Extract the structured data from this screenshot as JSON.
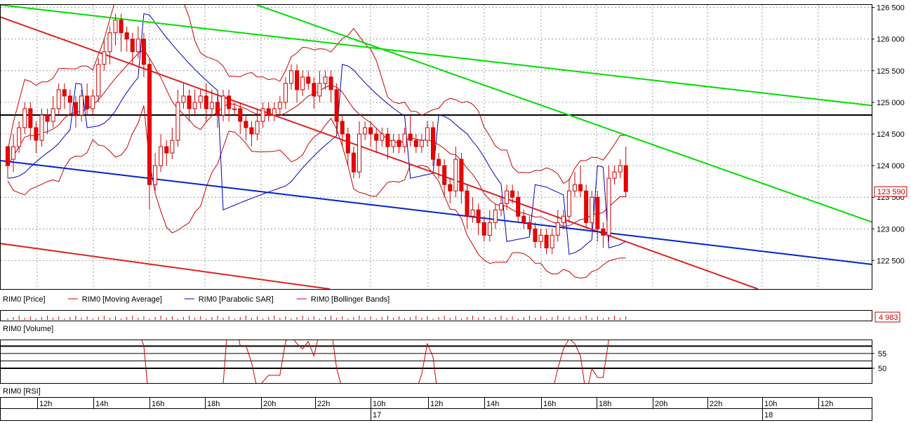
{
  "chart_data": {
    "type": "candlestick",
    "instrument": "RIM0",
    "price_axis": {
      "ticks": [
        "126 500",
        "126 000",
        "125 500",
        "125 000",
        "124 500",
        "124 000",
        "123 500",
        "123 000",
        "122 500"
      ],
      "tick_values": [
        126500,
        126000,
        125500,
        125000,
        124500,
        124000,
        123500,
        123000,
        122500
      ],
      "ylim": [
        122050,
        126540
      ]
    },
    "last_price_label": "123 590",
    "last_price": 123590,
    "volume_label": "4 983",
    "rsi_axis": {
      "ticks": [
        "55",
        "50"
      ],
      "tick_values": [
        55,
        50
      ],
      "ylim": [
        45,
        59.5
      ]
    },
    "legend": [
      {
        "label": "RIM0 [Price]",
        "color": "#cc0000"
      },
      {
        "label": "RIM0 [Moving Average]",
        "color": "#cc0000"
      },
      {
        "label": "RIM0 [Parabolic SAR]",
        "color": "#0000bb"
      },
      {
        "label": "RIM0 [Bollinger Bands]",
        "color": "#cc0000"
      }
    ],
    "panel_titles": {
      "volume": "RIM0 [Volume]",
      "rsi": "RIM0 [RSI]"
    },
    "time_axis": {
      "labels": [
        "12h",
        "14h",
        "16h",
        "18h",
        "20h",
        "22h",
        "10h",
        "12h",
        "14h",
        "16h",
        "18h",
        "20h",
        "22h",
        "10h",
        "12h"
      ],
      "dates": [
        "17",
        "18"
      ]
    },
    "horizontal_level": 124800,
    "trendlines": [
      {
        "color": "#00dd00",
        "from": [
          0,
          126540
        ],
        "to": [
          1242,
          124950
        ]
      },
      {
        "color": "#00dd00",
        "from": [
          366,
          126540
        ],
        "to": [
          1242,
          123110
        ]
      },
      {
        "color": "#dd2222",
        "from": [
          0,
          126350
        ],
        "to": [
          1080,
          122050
        ]
      },
      {
        "color": "#dd2222",
        "from": [
          0,
          122770
        ],
        "to": [
          470,
          122050
        ]
      },
      {
        "color": "#0022cc",
        "from": [
          0,
          124080
        ],
        "to": [
          1242,
          122440
        ]
      }
    ],
    "candles": [
      [
        124300,
        124000,
        123800,
        124300
      ],
      [
        124100,
        124300,
        123900,
        124500
      ],
      [
        124300,
        124600,
        124200,
        124700
      ],
      [
        124600,
        124900,
        124500,
        125000
      ],
      [
        124900,
        124600,
        124400,
        125000
      ],
      [
        124600,
        124400,
        124200,
        124700
      ],
      [
        124400,
        124800,
        124300,
        124900
      ],
      [
        124800,
        124700,
        124500,
        124900
      ],
      [
        124700,
        124900,
        124600,
        125100
      ],
      [
        124900,
        125200,
        124800,
        125300
      ],
      [
        125200,
        125100,
        124900,
        125300
      ],
      [
        125100,
        125000,
        124800,
        125200
      ],
      [
        125000,
        124800,
        124600,
        125100
      ],
      [
        124800,
        125100,
        124700,
        125200
      ],
      [
        125100,
        124900,
        124800,
        125300
      ],
      [
        124900,
        125100,
        124800,
        125200
      ],
      [
        125100,
        125600,
        125000,
        125700
      ],
      [
        125600,
        125800,
        125500,
        126000
      ],
      [
        125800,
        126100,
        125600,
        126200
      ],
      [
        126100,
        126300,
        125900,
        126400
      ],
      [
        126300,
        126100,
        125800,
        126400
      ],
      [
        126100,
        126000,
        125800,
        126200
      ],
      [
        126000,
        125800,
        125600,
        126100
      ],
      [
        125800,
        126000,
        125700,
        126200
      ],
      [
        126000,
        125600,
        125400,
        126100
      ],
      [
        125600,
        123700,
        123300,
        125700
      ],
      [
        123700,
        124000,
        123600,
        124200
      ],
      [
        124000,
        124300,
        123900,
        124500
      ],
      [
        124300,
        124200,
        124000,
        124400
      ],
      [
        124200,
        124400,
        124100,
        124600
      ],
      [
        124400,
        125000,
        124300,
        125200
      ],
      [
        125000,
        125100,
        124900,
        125300
      ],
      [
        125100,
        124900,
        124700,
        125200
      ],
      [
        124900,
        125000,
        124800,
        125200
      ],
      [
        125000,
        125100,
        124900,
        125200
      ],
      [
        125100,
        124900,
        124700,
        125300
      ],
      [
        124900,
        125000,
        124800,
        125200
      ],
      [
        125000,
        124800,
        124600,
        125100
      ],
      [
        124800,
        125100,
        124700,
        125200
      ],
      [
        125100,
        124900,
        124700,
        125200
      ],
      [
        124900,
        124900,
        124800,
        125000
      ],
      [
        124900,
        124700,
        124500,
        125000
      ],
      [
        124700,
        124600,
        124400,
        124800
      ],
      [
        124600,
        124500,
        124300,
        124700
      ],
      [
        124500,
        124700,
        124400,
        124900
      ],
      [
        124700,
        124900,
        124600,
        125000
      ],
      [
        124900,
        124800,
        124700,
        125000
      ],
      [
        124800,
        124900,
        124700,
        125000
      ],
      [
        124900,
        125000,
        124800,
        125100
      ],
      [
        125000,
        125300,
        124900,
        125400
      ],
      [
        125300,
        125500,
        125200,
        125600
      ],
      [
        125500,
        125200,
        125000,
        125600
      ],
      [
        125200,
        125400,
        125100,
        125500
      ],
      [
        125400,
        125300,
        125200,
        125500
      ],
      [
        125300,
        125100,
        124900,
        125400
      ],
      [
        125100,
        125300,
        125000,
        125500
      ],
      [
        125300,
        125400,
        125200,
        125500
      ],
      [
        125400,
        125200,
        125000,
        125500
      ],
      [
        125200,
        124700,
        124500,
        125300
      ],
      [
        124700,
        124500,
        124300,
        124800
      ],
      [
        124500,
        124200,
        124000,
        124600
      ],
      [
        124200,
        123900,
        123800,
        124300
      ],
      [
        123900,
        124500,
        123800,
        124700
      ],
      [
        124500,
        124600,
        124400,
        124700
      ],
      [
        124600,
        124500,
        124300,
        124700
      ],
      [
        124500,
        124400,
        124200,
        124600
      ],
      [
        124400,
        124500,
        124300,
        124600
      ],
      [
        124500,
        124300,
        124100,
        124600
      ],
      [
        124300,
        124400,
        124200,
        124500
      ],
      [
        124400,
        124300,
        124200,
        124500
      ],
      [
        124300,
        124500,
        124200,
        124600
      ],
      [
        124500,
        124400,
        124300,
        124800
      ],
      [
        124400,
        124300,
        124200,
        124500
      ],
      [
        124300,
        124400,
        124200,
        124500
      ],
      [
        124400,
        124600,
        124300,
        124700
      ],
      [
        124600,
        124100,
        124000,
        124700
      ],
      [
        124100,
        124000,
        123800,
        124200
      ],
      [
        124000,
        123700,
        123500,
        124100
      ],
      [
        123700,
        123600,
        123400,
        123800
      ],
      [
        123600,
        124100,
        123500,
        124300
      ],
      [
        124100,
        123600,
        123400,
        124200
      ],
      [
        123600,
        123200,
        123000,
        123700
      ],
      [
        123200,
        123300,
        123100,
        123500
      ],
      [
        123300,
        123100,
        122900,
        123400
      ],
      [
        123100,
        122900,
        122800,
        123200
      ],
      [
        122900,
        123100,
        122800,
        123300
      ],
      [
        123100,
        123300,
        123000,
        123400
      ],
      [
        123300,
        123400,
        123200,
        123500
      ],
      [
        123400,
        123600,
        123300,
        123700
      ],
      [
        123600,
        123500,
        123400,
        123700
      ],
      [
        123500,
        123200,
        123100,
        123600
      ],
      [
        123200,
        123100,
        123000,
        123300
      ],
      [
        123100,
        123000,
        122900,
        123200
      ],
      [
        123000,
        122800,
        122700,
        123100
      ],
      [
        122800,
        122900,
        122700,
        123000
      ],
      [
        122900,
        122700,
        122600,
        123000
      ],
      [
        122700,
        122900,
        122600,
        123000
      ],
      [
        122900,
        123100,
        122800,
        123300
      ],
      [
        123100,
        123200,
        123000,
        123300
      ],
      [
        123200,
        123600,
        123100,
        123800
      ],
      [
        123600,
        123700,
        123500,
        123900
      ],
      [
        123700,
        123600,
        123500,
        124000
      ],
      [
        123600,
        123100,
        123000,
        123700
      ],
      [
        123100,
        123500,
        123000,
        123600
      ],
      [
        123500,
        123000,
        122800,
        123600
      ],
      [
        123000,
        122900,
        122700,
        123100
      ],
      [
        122900,
        123800,
        122800,
        124000
      ],
      [
        123800,
        123900,
        123700,
        124000
      ],
      [
        123900,
        124000,
        123800,
        124100
      ],
      [
        124000,
        123590,
        123500,
        124300
      ]
    ]
  }
}
